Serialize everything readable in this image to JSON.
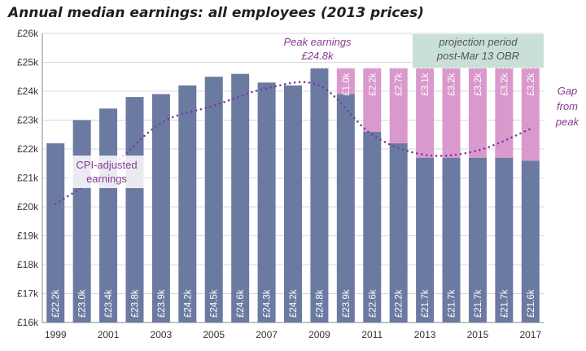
{
  "chart_data": {
    "type": "bar",
    "title": "Annual median earnings: all employees (2013 prices)",
    "xlabel": "",
    "ylabel": "",
    "ylim": [
      16,
      26
    ],
    "y_unit": "£k",
    "y_ticks": [
      "£16k",
      "£17k",
      "£18k",
      "£19k",
      "£20k",
      "£21k",
      "£22k",
      "£23k",
      "£24k",
      "£25k",
      "£26k"
    ],
    "years": [
      1999,
      2000,
      2001,
      2002,
      2003,
      2004,
      2005,
      2006,
      2007,
      2008,
      2009,
      2010,
      2011,
      2012,
      2013,
      2014,
      2015,
      2016,
      2017
    ],
    "x_tick_labels": [
      "1999",
      "2001",
      "2003",
      "2005",
      "2007",
      "2009",
      "2011",
      "2013",
      "2015",
      "2017"
    ],
    "series": [
      {
        "name": "Annual median earnings",
        "color": "#6b7aa1",
        "values": [
          22.2,
          23.0,
          23.4,
          23.8,
          23.9,
          24.2,
          24.5,
          24.6,
          24.3,
          24.2,
          24.8,
          23.9,
          22.6,
          22.2,
          21.7,
          21.7,
          21.7,
          21.7,
          21.6
        ],
        "labels": [
          "£22.2k",
          "£23.0k",
          "£23.4k",
          "£23.8k",
          "£23.9k",
          "£24.2k",
          "£24.5k",
          "£24.6k",
          "£24.3k",
          "£24.2k",
          "£24.8k",
          "£23.9k",
          "£22.6k",
          "£22.2k",
          "£21.7k",
          "£21.7k",
          "£21.7k",
          "£21.7k",
          "£21.6k"
        ]
      },
      {
        "name": "Gap from peak",
        "color": "#d999cc",
        "start_year": 2010,
        "gap_labels": [
          "£1.0k",
          "£2.2k",
          "£2.7k",
          "£3.1k",
          "£3.2k",
          "£3.2k",
          "£3.2k",
          "£3.2k"
        ]
      },
      {
        "name": "CPI-adjusted earnings",
        "style": "dotted",
        "color": "#7a3b9e",
        "x": [
          1999,
          2001,
          2003,
          2005,
          2007,
          2009,
          2011,
          2013,
          2015,
          2017
        ],
        "values": [
          20.1,
          21.3,
          22.9,
          23.5,
          24.1,
          24.2,
          22.5,
          21.8,
          21.95,
          22.7
        ]
      }
    ],
    "peak": {
      "value": 24.8,
      "label_line1": "Peak earnings",
      "label_line2": "£24.8k"
    },
    "projection": {
      "start_year": 2013,
      "end_year": 2017,
      "label_line1": "projection period",
      "label_line2": "post-Mar 13 OBR",
      "color": "#c9e0d6"
    },
    "annotations": {
      "cpi_label_line1": "CPI-adjusted",
      "cpi_label_line2": "earnings",
      "gap_label_lines": [
        "Gap",
        "from",
        "peak"
      ]
    },
    "grid": true,
    "colors": {
      "bar": "#6b7aa1",
      "gap": "#d999cc",
      "cpi_line": "#7a3b9e",
      "annotation_text": "#8a3a92",
      "projection_text": "#555555"
    }
  }
}
